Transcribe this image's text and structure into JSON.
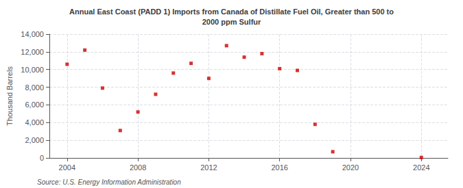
{
  "chart_data": {
    "type": "scatter",
    "title": "Annual East Coast (PADD 1) Imports from Canada of Distillate Fuel Oil, Greater than 500 to\n2000 ppm Sulfur",
    "ylabel": "Thousand Barrels",
    "annotations": [
      "Source: U.S. Energy Information Administration"
    ],
    "x": [
      2004,
      2005,
      2006,
      2007,
      2008,
      2009,
      2010,
      2011,
      2012,
      2013,
      2014,
      2015,
      2016,
      2017,
      2018,
      2019,
      2024
    ],
    "values": [
      10600,
      12200,
      7900,
      3100,
      5200,
      7200,
      9600,
      10700,
      9000,
      12700,
      11400,
      11800,
      10100,
      9900,
      3800,
      700,
      50
    ],
    "color": "#cc0000",
    "marker": "square",
    "xlim": [
      2003.0,
      2025.5
    ],
    "xticks": [
      2004,
      2008,
      2012,
      2016,
      2020,
      2024
    ],
    "ylim": [
      0,
      14000
    ],
    "yticks": [
      0,
      {
        "value": 2000,
        "label": "2,000"
      },
      {
        "value": 4000,
        "label": "4,000"
      },
      {
        "value": 6000,
        "label": "6,000"
      },
      {
        "value": 8000,
        "label": "8,000"
      },
      {
        "value": 10000,
        "label": "10,000"
      },
      {
        "value": 12000,
        "label": "12,000"
      },
      {
        "value": 14000,
        "label": "14,000"
      }
    ],
    "grid": true
  }
}
